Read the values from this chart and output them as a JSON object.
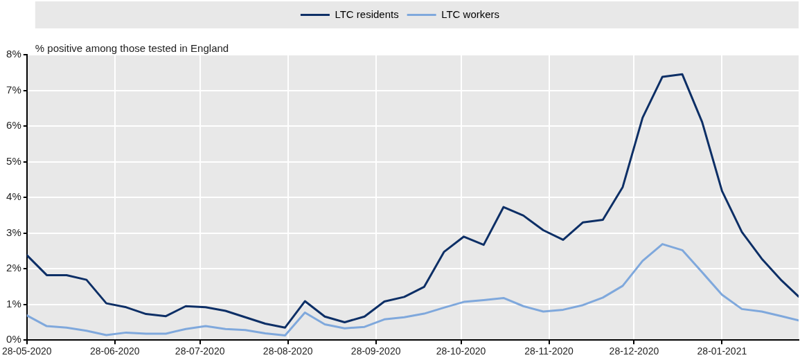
{
  "chart_data": {
    "type": "line",
    "ylabel": "% positive among those tested in England",
    "x": [
      "2020-05-28",
      "2020-06-04",
      "2020-06-11",
      "2020-06-18",
      "2020-06-25",
      "2020-07-02",
      "2020-07-09",
      "2020-07-16",
      "2020-07-23",
      "2020-07-30",
      "2020-08-06",
      "2020-08-13",
      "2020-08-20",
      "2020-08-27",
      "2020-09-03",
      "2020-09-10",
      "2020-09-17",
      "2020-09-24",
      "2020-10-01",
      "2020-10-08",
      "2020-10-15",
      "2020-10-22",
      "2020-10-29",
      "2020-11-05",
      "2020-11-12",
      "2020-11-19",
      "2020-11-26",
      "2020-12-03",
      "2020-12-10",
      "2020-12-17",
      "2020-12-24",
      "2020-12-31",
      "2021-01-07",
      "2021-01-14",
      "2021-01-21",
      "2021-01-28",
      "2021-02-04",
      "2021-02-11",
      "2021-02-18",
      "2021-02-24"
    ],
    "series": [
      {
        "name": "LTC residents",
        "color": "#0d2f66",
        "values": [
          2.38,
          1.82,
          1.82,
          1.69,
          1.03,
          0.92,
          0.73,
          0.67,
          0.95,
          0.92,
          0.82,
          0.64,
          0.46,
          0.35,
          1.09,
          0.66,
          0.5,
          0.66,
          1.08,
          1.21,
          1.49,
          2.47,
          2.9,
          2.67,
          3.73,
          3.49,
          3.08,
          2.81,
          3.3,
          3.37,
          4.29,
          6.23,
          7.38,
          7.45,
          6.11,
          4.18,
          3.03,
          2.28,
          1.67,
          1.22
        ]
      },
      {
        "name": "LTC workers",
        "color": "#7fa8dc",
        "values": [
          0.69,
          0.39,
          0.35,
          0.26,
          0.14,
          0.21,
          0.18,
          0.18,
          0.31,
          0.39,
          0.31,
          0.28,
          0.19,
          0.13,
          0.77,
          0.44,
          0.33,
          0.37,
          0.58,
          0.64,
          0.74,
          0.91,
          1.07,
          1.12,
          1.18,
          0.95,
          0.8,
          0.85,
          0.98,
          1.19,
          1.52,
          2.22,
          2.69,
          2.52,
          1.9,
          1.27,
          0.87,
          0.8,
          0.67,
          0.55
        ]
      }
    ],
    "xlim": [
      "2020-05-28",
      "2021-02-24"
    ],
    "xticks": [
      {
        "value": "2020-05-28",
        "label": "28-05-2020"
      },
      {
        "value": "2020-06-28",
        "label": "28-06-2020"
      },
      {
        "value": "2020-07-28",
        "label": "28-07-2020"
      },
      {
        "value": "2020-08-28",
        "label": "28-08-2020"
      },
      {
        "value": "2020-09-28",
        "label": "28-09-2020"
      },
      {
        "value": "2020-10-28",
        "label": "28-10-2020"
      },
      {
        "value": "2020-11-28",
        "label": "28-11-2020"
      },
      {
        "value": "2020-12-28",
        "label": "28-12-2020"
      },
      {
        "value": "2021-01-28",
        "label": "28-01-2021"
      }
    ],
    "ylim": [
      0,
      8
    ],
    "yticks": [
      {
        "value": 0,
        "label": "0%"
      },
      {
        "value": 1,
        "label": "1%"
      },
      {
        "value": 2,
        "label": "2%"
      },
      {
        "value": 3,
        "label": "3%"
      },
      {
        "value": 4,
        "label": "4%"
      },
      {
        "value": 5,
        "label": "5%"
      },
      {
        "value": 6,
        "label": "6%"
      },
      {
        "value": 7,
        "label": "7%"
      },
      {
        "value": 8,
        "label": "8%"
      }
    ],
    "grid": true,
    "legend": "top"
  }
}
